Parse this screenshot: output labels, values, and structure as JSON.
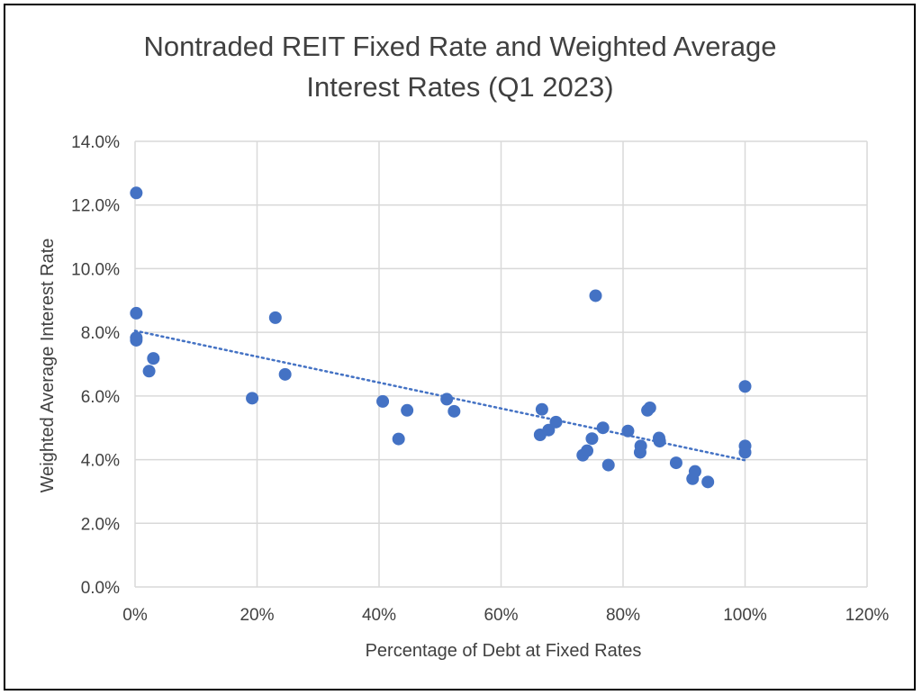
{
  "chart_data": {
    "type": "scatter",
    "title_lines": [
      "Nontraded REIT Fixed Rate and Weighted Average",
      "Interest Rates (Q1 2023)"
    ],
    "xlabel": "Percentage of Debt at Fixed Rates",
    "ylabel": "Weighted Average Interest Rate",
    "xlim": [
      0,
      1.2
    ],
    "ylim": [
      0,
      0.14
    ],
    "x_ticks": [
      0,
      0.2,
      0.4,
      0.6,
      0.8,
      1.0,
      1.2
    ],
    "x_tick_labels": [
      "0%",
      "20%",
      "40%",
      "60%",
      "80%",
      "100%",
      "120%"
    ],
    "y_ticks": [
      0,
      0.02,
      0.04,
      0.06,
      0.08,
      0.1,
      0.12,
      0.14
    ],
    "y_tick_labels": [
      "0.0%",
      "2.0%",
      "4.0%",
      "6.0%",
      "8.0%",
      "10.0%",
      "12.0%",
      "14.0%"
    ],
    "grid": true,
    "legend": "none",
    "marker_color": "#4472C4",
    "trendline": {
      "type": "linear",
      "style": "dotted",
      "x": [
        0,
        1.0
      ],
      "y": [
        0.0805,
        0.0398
      ]
    },
    "points": [
      {
        "x": 0.002,
        "y": 0.1238
      },
      {
        "x": 0.002,
        "y": 0.086
      },
      {
        "x": 0.002,
        "y": 0.0783
      },
      {
        "x": 0.002,
        "y": 0.0775
      },
      {
        "x": 0.023,
        "y": 0.0678
      },
      {
        "x": 0.03,
        "y": 0.0718
      },
      {
        "x": 0.192,
        "y": 0.0593
      },
      {
        "x": 0.23,
        "y": 0.0846
      },
      {
        "x": 0.246,
        "y": 0.0668
      },
      {
        "x": 0.406,
        "y": 0.0583
      },
      {
        "x": 0.432,
        "y": 0.0465
      },
      {
        "x": 0.446,
        "y": 0.0555
      },
      {
        "x": 0.511,
        "y": 0.059
      },
      {
        "x": 0.523,
        "y": 0.0552
      },
      {
        "x": 0.664,
        "y": 0.0478
      },
      {
        "x": 0.667,
        "y": 0.0558
      },
      {
        "x": 0.678,
        "y": 0.0493
      },
      {
        "x": 0.69,
        "y": 0.0518
      },
      {
        "x": 0.734,
        "y": 0.0414
      },
      {
        "x": 0.741,
        "y": 0.0428
      },
      {
        "x": 0.749,
        "y": 0.0466
      },
      {
        "x": 0.755,
        "y": 0.0915
      },
      {
        "x": 0.767,
        "y": 0.05
      },
      {
        "x": 0.776,
        "y": 0.0383
      },
      {
        "x": 0.808,
        "y": 0.049
      },
      {
        "x": 0.828,
        "y": 0.0423
      },
      {
        "x": 0.829,
        "y": 0.0443
      },
      {
        "x": 0.84,
        "y": 0.0555
      },
      {
        "x": 0.844,
        "y": 0.0563
      },
      {
        "x": 0.859,
        "y": 0.0468
      },
      {
        "x": 0.86,
        "y": 0.0458
      },
      {
        "x": 0.887,
        "y": 0.039
      },
      {
        "x": 0.914,
        "y": 0.034
      },
      {
        "x": 0.918,
        "y": 0.0363
      },
      {
        "x": 0.939,
        "y": 0.033
      },
      {
        "x": 1.0,
        "y": 0.063
      },
      {
        "x": 1.0,
        "y": 0.0443
      },
      {
        "x": 1.0,
        "y": 0.0423
      }
    ]
  }
}
